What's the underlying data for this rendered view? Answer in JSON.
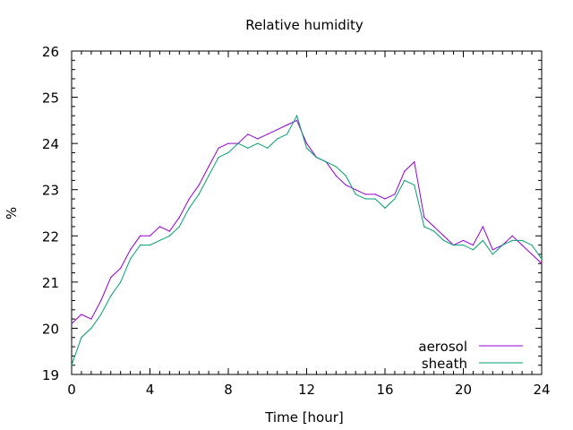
{
  "chart_data": {
    "type": "line",
    "title": "Relative humidity",
    "xlabel": "Time [hour]",
    "ylabel": "%",
    "xlim": [
      0,
      24
    ],
    "ylim": [
      19,
      26
    ],
    "xticks": [
      0,
      4,
      8,
      12,
      16,
      20,
      24
    ],
    "yticks": [
      19,
      20,
      21,
      22,
      23,
      24,
      25,
      26
    ],
    "grid": false,
    "legend_position": "bottom-right",
    "series": [
      {
        "name": "aerosol",
        "color": "#9400d3",
        "x": [
          0,
          0.5,
          1,
          1.5,
          2,
          2.5,
          3,
          3.5,
          4,
          4.5,
          5,
          5.5,
          6,
          6.5,
          7,
          7.5,
          8,
          8.5,
          9,
          9.5,
          10,
          10.5,
          11,
          11.5,
          12,
          12.5,
          13,
          13.5,
          14,
          14.5,
          15,
          15.5,
          16,
          16.5,
          17,
          17.5,
          18,
          18.5,
          19,
          19.5,
          20,
          20.5,
          21,
          21.5,
          22,
          22.5,
          23,
          23.5,
          24
        ],
        "values": [
          20.1,
          20.3,
          20.2,
          20.6,
          21.1,
          21.3,
          21.7,
          22.0,
          22.0,
          22.2,
          22.1,
          22.4,
          22.8,
          23.1,
          23.5,
          23.9,
          24.0,
          24.0,
          24.2,
          24.1,
          24.2,
          24.3,
          24.4,
          24.5,
          24.0,
          23.7,
          23.6,
          23.3,
          23.1,
          23.0,
          22.9,
          22.9,
          22.8,
          22.9,
          23.4,
          23.6,
          22.4,
          22.2,
          22.0,
          21.8,
          21.9,
          21.8,
          22.2,
          21.7,
          21.8,
          22.0,
          21.8,
          21.6,
          21.4
        ]
      },
      {
        "name": "sheath",
        "color": "#009e73",
        "x": [
          0,
          0.5,
          1,
          1.5,
          2,
          2.5,
          3,
          3.5,
          4,
          4.5,
          5,
          5.5,
          6,
          6.5,
          7,
          7.5,
          8,
          8.5,
          9,
          9.5,
          10,
          10.5,
          11,
          11.5,
          12,
          12.5,
          13,
          13.5,
          14,
          14.5,
          15,
          15.5,
          16,
          16.5,
          17,
          17.5,
          18,
          18.5,
          19,
          19.5,
          20,
          20.5,
          21,
          21.5,
          22,
          22.5,
          23,
          23.5,
          24
        ],
        "values": [
          19.2,
          19.8,
          20.0,
          20.3,
          20.7,
          21.0,
          21.5,
          21.8,
          21.8,
          21.9,
          22.0,
          22.2,
          22.6,
          22.9,
          23.3,
          23.7,
          23.8,
          24.0,
          23.9,
          24.0,
          23.9,
          24.1,
          24.2,
          24.6,
          23.9,
          23.7,
          23.6,
          23.5,
          23.3,
          22.9,
          22.8,
          22.8,
          22.6,
          22.8,
          23.2,
          23.1,
          22.2,
          22.1,
          21.9,
          21.8,
          21.8,
          21.7,
          21.9,
          21.6,
          21.8,
          21.9,
          21.9,
          21.8,
          21.5
        ]
      }
    ]
  }
}
